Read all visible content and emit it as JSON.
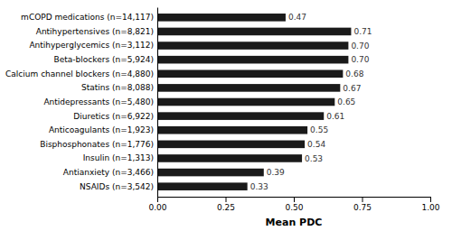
{
  "chart_data": {
    "type": "bar",
    "orientation": "horizontal",
    "categories": [
      "NSAIDs (n=3,542)",
      "Antianxiety (n=3,466)",
      "Insulin (n=1,313)",
      "Bisphosphonates (n=1,776)",
      "Anticoagulants (n=1,923)",
      "Diuretics (n=6,922)",
      "Antidepressants (n=5,480)",
      "Statins (n=8,088)",
      "Calcium channel blockers (n=4,880)",
      "Beta-blockers (n=5,924)",
      "Antihyperglycemics (n=3,112)",
      "Antihypertensives (n=8,821)",
      "mCOPD medications (n=14,117)"
    ],
    "values": [
      0.33,
      0.39,
      0.53,
      0.54,
      0.55,
      0.61,
      0.65,
      0.67,
      0.68,
      0.7,
      0.7,
      0.71,
      0.47
    ],
    "value_labels": [
      "0.33",
      "0.39",
      "0.53",
      "0.54",
      "0.55",
      "0.61",
      "0.65",
      "0.67",
      "0.68",
      "0.70",
      "0.70",
      "0.71",
      "0.47"
    ],
    "data_labels": true,
    "color": "#1a1a1a",
    "xlabel": "Mean PDC",
    "xlim": [
      0.0,
      1.0
    ],
    "xticks": [
      {
        "value": 0.0,
        "label": "0.00"
      },
      {
        "value": 0.25,
        "label": "0.25"
      },
      {
        "value": 0.5,
        "label": "0.50"
      },
      {
        "value": 0.75,
        "label": "0.75"
      },
      {
        "value": 1.0,
        "label": "1.00"
      }
    ],
    "grid": false
  }
}
